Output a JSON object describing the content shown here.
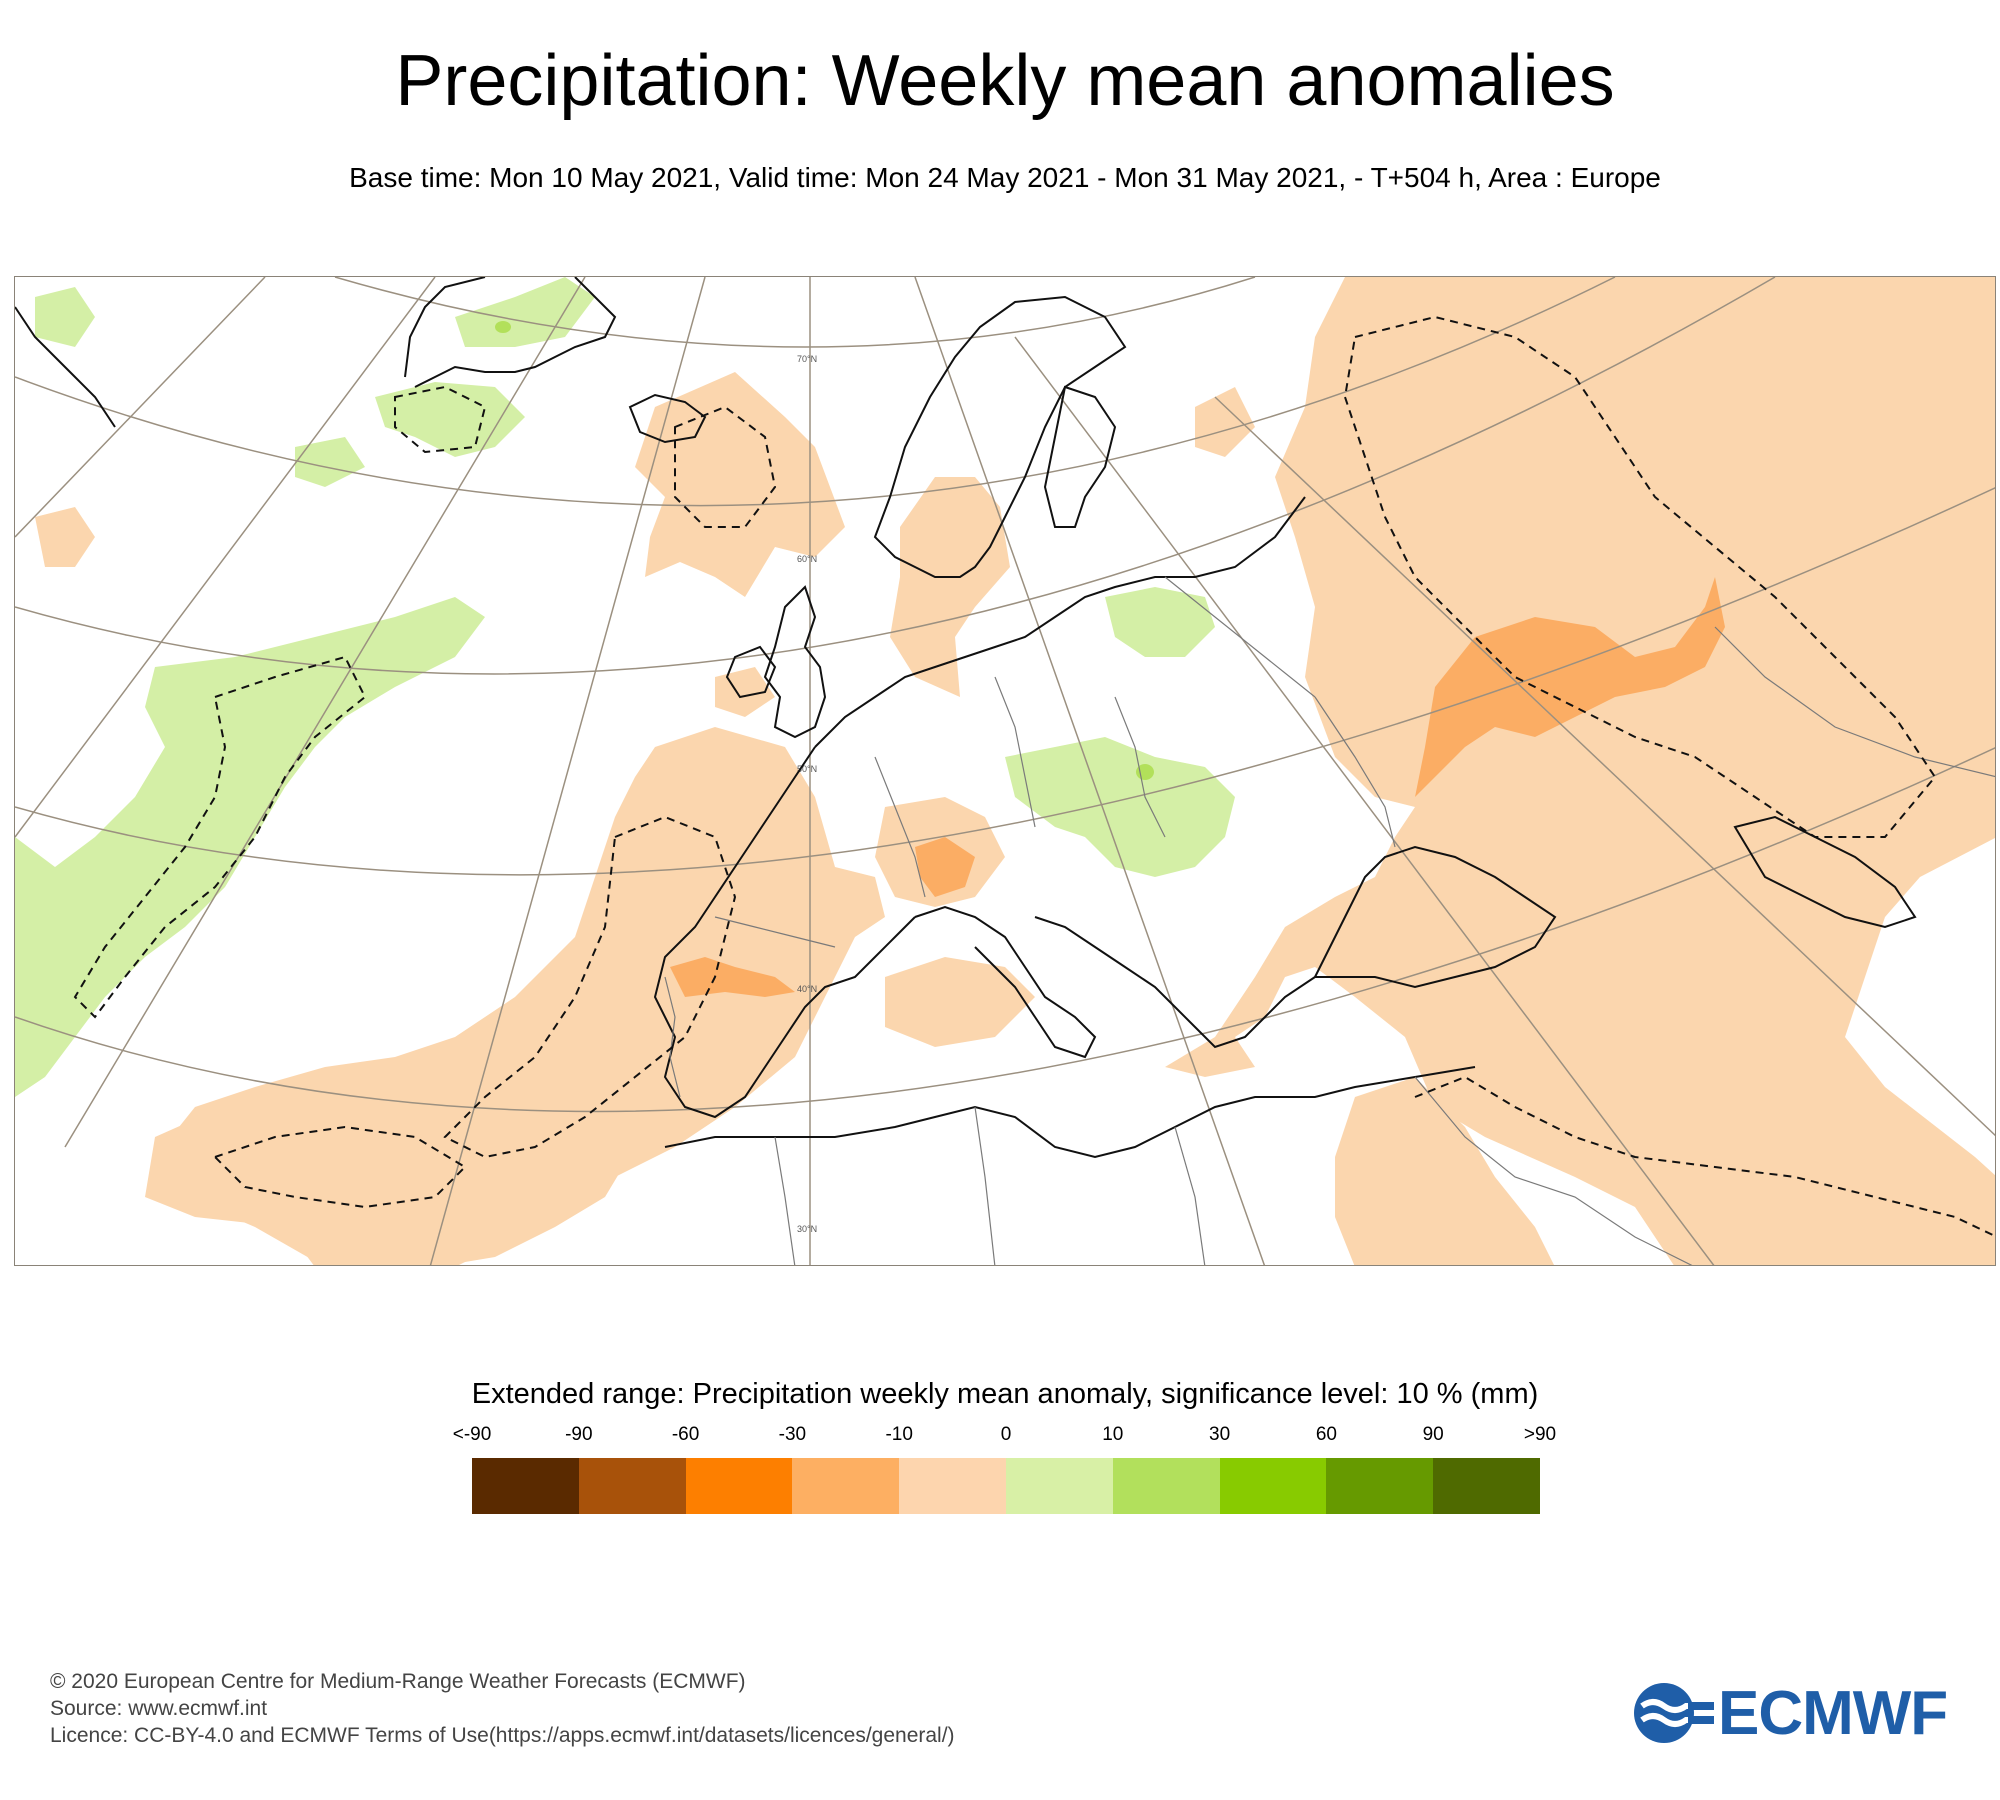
{
  "title": "Precipitation: Weekly mean anomalies",
  "subtitle": "Base time: Mon 10 May 2021, Valid time: Mon 24 May 2021 - Mon 31 May 2021, - T+504 h, Area : Europe",
  "map": {
    "area": "Europe",
    "latitude_labels": [
      "70°N",
      "60°N",
      "50°N",
      "40°N",
      "30°N"
    ],
    "colors": {
      "coastline": "#111111",
      "border": "#7a7a7a",
      "graticule": "#9b9080",
      "dry_light": "#fbd6ae",
      "dry_medium": "#fbad64",
      "wet_light": "#d4efa6",
      "wet_medium": "#b2e05a"
    }
  },
  "legend": {
    "title": "Extended range: Precipitation weekly mean anomaly, significance level: 10 % (mm)",
    "ticks": [
      "<-90",
      "-90",
      "-60",
      "-30",
      "-10",
      "0",
      "10",
      "30",
      "60",
      "90",
      ">90"
    ],
    "colors": [
      "#5a2a00",
      "#a8520a",
      "#fd7f00",
      "#fdaf62",
      "#fdd5ae",
      "#d8f0a6",
      "#b2e05c",
      "#88cb00",
      "#669a00",
      "#4f6a00"
    ]
  },
  "footer": {
    "copyright": "© 2020 European Centre for Medium-Range Weather Forecasts (ECMWF)",
    "source": "Source: www.ecmwf.int",
    "licence": "Licence: CC-BY-4.0 and ECMWF Terms of Use(https://apps.ecmwf.int/datasets/licences/general/)"
  },
  "logo": {
    "text": "ECMWF",
    "color": "#1f5ea8"
  }
}
